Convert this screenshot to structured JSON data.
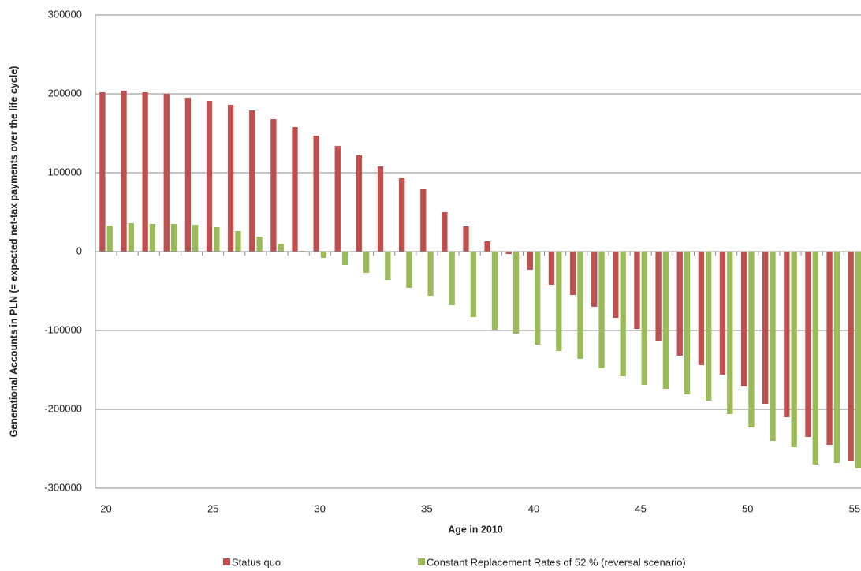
{
  "chart_data": {
    "type": "bar",
    "y_label": "Generational Accounts in PLN (= expected net-tax payments over the life cycle)",
    "x_label": "Age in 2010",
    "x": [
      20,
      21,
      22,
      23,
      24,
      25,
      26,
      27,
      28,
      29,
      30,
      31,
      32,
      33,
      34,
      35,
      36,
      37,
      38,
      39,
      40,
      41,
      42,
      43,
      44,
      45,
      46,
      47,
      48,
      49,
      50,
      51,
      52,
      53,
      54,
      55
    ],
    "xlim": [
      19.5,
      55.3
    ],
    "xticks": [
      20,
      25,
      30,
      35,
      40,
      45,
      50,
      55
    ],
    "ylim": [
      -300000,
      300000
    ],
    "yticks": [
      -300000,
      -200000,
      -100000,
      0,
      100000,
      200000,
      300000
    ],
    "grid": true,
    "legend": "bottom",
    "series": [
      {
        "name": "Status quo",
        "color": "#c0504d",
        "values": [
          202000,
          204000,
          202000,
          200000,
          195000,
          191000,
          186000,
          179000,
          168000,
          158000,
          147000,
          134000,
          122000,
          108000,
          93000,
          79000,
          50000,
          32000,
          13000,
          -3000,
          -23000,
          -42000,
          -55000,
          -70000,
          -84000,
          -98000,
          -113000,
          -132000,
          -144000,
          -156000,
          -171000,
          -193000,
          -210000,
          -235000,
          -245000,
          -265000
        ]
      },
      {
        "name": "Constant Replacement Rates of 52 % (reversal scenario)",
        "color": "#9bbb59",
        "values": [
          33000,
          36000,
          35000,
          35000,
          34000,
          31000,
          26000,
          19000,
          10000,
          1000,
          -8000,
          -17000,
          -27000,
          -36000,
          -46000,
          -56000,
          -68000,
          -83000,
          -99000,
          -104000,
          -118000,
          -126000,
          -136000,
          -148000,
          -158000,
          -169000,
          -174000,
          -181000,
          -189000,
          -206000,
          -223000,
          -240000,
          -248000,
          -270000,
          -268000,
          -275000
        ]
      }
    ]
  }
}
